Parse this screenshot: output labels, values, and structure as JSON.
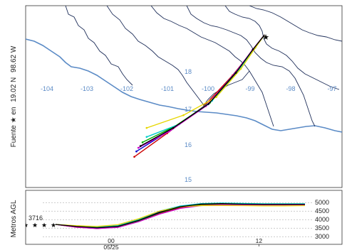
{
  "map": {
    "source_label": "Fuente ★ en",
    "source_lat": "19.02 N",
    "source_lon": "98.62 W",
    "lon_ticks": [
      "-104",
      "-103",
      "-102",
      "-101",
      "-100",
      "-99",
      "-98",
      "-97"
    ],
    "lat_ticks": [
      "18",
      "17",
      "16",
      "15"
    ],
    "colors": {
      "coast": "#5b8bc6",
      "states": "#1f2f5a",
      "labels": "#5b8bc6"
    }
  },
  "chart_data": {
    "type": "line",
    "ylabel": "Metros AGL",
    "yticks": [
      "5000",
      "4500",
      "4000",
      "3500",
      "3000"
    ],
    "ylim": [
      2800,
      5300
    ],
    "start_height_label": "3716",
    "start_height": 3716,
    "xtick_labels": [
      {
        "top": "00",
        "bottom": "05/25"
      },
      {
        "top": "12",
        "bottom": ""
      }
    ],
    "x": [
      0,
      3,
      6,
      9,
      12,
      15,
      18,
      21,
      24,
      27,
      30,
      33,
      36
    ],
    "series": [
      {
        "color": "#cc0000",
        "values": [
          3716,
          3550,
          3480,
          3560,
          3900,
          4350,
          4700,
          4850,
          4900,
          4880,
          4870,
          4870,
          4880
        ]
      },
      {
        "color": "#0000cc",
        "values": [
          3716,
          3600,
          3520,
          3600,
          3950,
          4450,
          4780,
          4920,
          4950,
          4920,
          4900,
          4900,
          4900
        ]
      },
      {
        "color": "#00aa00",
        "values": [
          3716,
          3580,
          3500,
          3580,
          3930,
          4400,
          4740,
          4890,
          4930,
          4900,
          4890,
          4890,
          4890
        ]
      },
      {
        "color": "#00cccc",
        "values": [
          3716,
          3620,
          3560,
          3650,
          4000,
          4500,
          4800,
          4940,
          4970,
          4950,
          4930,
          4930,
          4930
        ]
      },
      {
        "color": "#cc00cc",
        "values": [
          3716,
          3560,
          3470,
          3540,
          3880,
          4320,
          4660,
          4820,
          4870,
          4860,
          4850,
          4850,
          4860
        ]
      },
      {
        "color": "#e6d600",
        "values": [
          3716,
          3640,
          3600,
          3700,
          4050,
          4500,
          4750,
          4820,
          4830,
          4820,
          4810,
          4810,
          4820
        ]
      },
      {
        "color": "#000000",
        "values": [
          3716,
          3600,
          3520,
          3610,
          3960,
          4420,
          4760,
          4910,
          4940,
          4910,
          4900,
          4900,
          4900
        ]
      }
    ]
  },
  "trajectories": [
    {
      "color": "#cc0000",
      "points": [
        [
          -98.62,
          19.02
        ],
        [
          -98.9,
          18.6
        ],
        [
          -99.4,
          17.9
        ],
        [
          -100.1,
          17.05
        ],
        [
          -101.0,
          16.3
        ],
        [
          -101.8,
          15.65
        ]
      ]
    },
    {
      "color": "#0000cc",
      "points": [
        [
          -98.62,
          19.02
        ],
        [
          -98.9,
          18.62
        ],
        [
          -99.35,
          17.95
        ],
        [
          -100.0,
          17.1
        ],
        [
          -100.9,
          16.4
        ],
        [
          -101.75,
          15.8
        ]
      ]
    },
    {
      "color": "#00aa00",
      "points": [
        [
          -98.62,
          19.02
        ],
        [
          -98.88,
          18.63
        ],
        [
          -99.3,
          18.0
        ],
        [
          -99.95,
          17.15
        ],
        [
          -100.8,
          16.5
        ],
        [
          -101.6,
          16.05
        ]
      ]
    },
    {
      "color": "#00cccc",
      "points": [
        [
          -98.62,
          19.02
        ],
        [
          -98.86,
          18.65
        ],
        [
          -99.25,
          18.05
        ],
        [
          -99.9,
          17.2
        ],
        [
          -100.7,
          16.55
        ],
        [
          -101.5,
          16.2
        ]
      ]
    },
    {
      "color": "#cc00cc",
      "points": [
        [
          -98.62,
          19.02
        ],
        [
          -98.92,
          18.6
        ],
        [
          -99.38,
          17.9
        ],
        [
          -100.05,
          17.05
        ],
        [
          -100.95,
          16.35
        ],
        [
          -101.7,
          15.9
        ]
      ]
    },
    {
      "color": "#e6d600",
      "points": [
        [
          -98.62,
          19.02
        ],
        [
          -98.84,
          18.67
        ],
        [
          -99.2,
          18.08
        ],
        [
          -99.8,
          17.3
        ],
        [
          -100.6,
          16.8
        ],
        [
          -101.5,
          16.45
        ]
      ]
    },
    {
      "color": "#000000",
      "points": [
        [
          -98.62,
          19.02
        ],
        [
          -98.9,
          18.62
        ],
        [
          -99.32,
          17.97
        ],
        [
          -99.98,
          17.12
        ],
        [
          -100.85,
          16.45
        ],
        [
          -101.65,
          15.95
        ]
      ]
    }
  ]
}
